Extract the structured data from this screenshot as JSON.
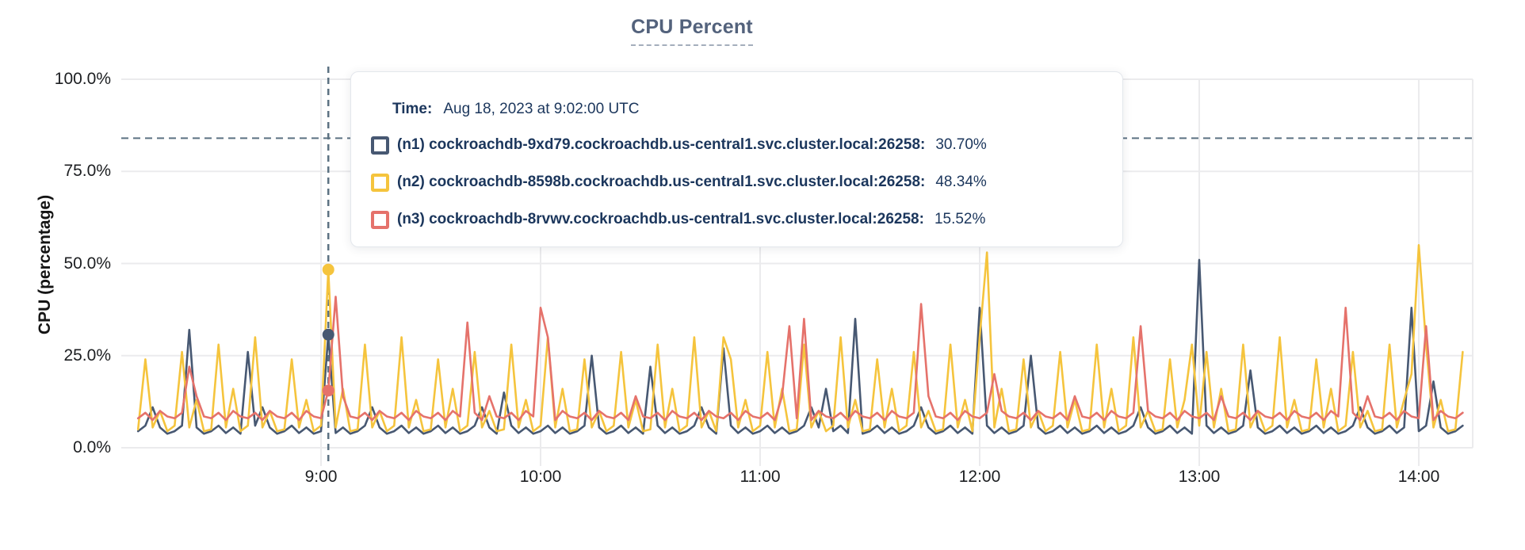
{
  "page": {
    "background": "#ffffff"
  },
  "chart": {
    "title": "CPU Percent",
    "y_axis_title": "CPU (percentage)"
  },
  "tooltip": {
    "time_label": "Time:",
    "time_value": "Aug 18, 2023 at 9:02:00 UTC",
    "rows": [
      {
        "label": "(n1) cockroachdb-9xd79.cockroachdb.us-central1.svc.cluster.local:26258:",
        "value": "30.70%",
        "color": "#475872"
      },
      {
        "label": "(n2) cockroachdb-8598b.cockroachdb.us-central1.svc.cluster.local:26258:",
        "value": "48.34%",
        "color": "#f5c43d"
      },
      {
        "label": "(n3) cockroachdb-8rvwv.cockroachdb.us-central1.svc.cluster.local:26258:",
        "value": "15.52%",
        "color": "#e5726b"
      }
    ]
  },
  "chart_data": {
    "type": "line",
    "title": "CPU Percent",
    "xlabel": "",
    "ylabel": "CPU (percentage)",
    "ylim": [
      0,
      100
    ],
    "grid": true,
    "legend_position": "tooltip",
    "y_ticks": [
      {
        "value": 100,
        "label": "100.0%"
      },
      {
        "value": 75,
        "label": "75.0%"
      },
      {
        "value": 50,
        "label": "50.0%"
      },
      {
        "value": 25,
        "label": "25.0%"
      },
      {
        "value": 0,
        "label": "0.0%"
      }
    ],
    "x_ticks": [
      {
        "minute": 540,
        "label": "9:00"
      },
      {
        "minute": 600,
        "label": "10:00"
      },
      {
        "minute": 660,
        "label": "11:00"
      },
      {
        "minute": 720,
        "label": "12:00"
      },
      {
        "minute": 780,
        "label": "13:00"
      },
      {
        "minute": 840,
        "label": "14:00"
      }
    ],
    "x_range_minutes": [
      485,
      855
    ],
    "guideline_dashed_percent": 84,
    "hover": {
      "minute": 542,
      "time": "Aug 18, 2023 at 9:02:00 UTC",
      "points": [
        {
          "series": "n2",
          "value": 48.34
        },
        {
          "series": "n1",
          "value": 30.7
        },
        {
          "series": "n3",
          "value": 15.52
        }
      ]
    },
    "sample_start_minute": 490,
    "sample_step_minutes": 2,
    "series": [
      {
        "id": "n1",
        "name": "cockroachdb-9xd79.cockroachdb.us-central1.svc.cluster.local:26258",
        "color": "#475872",
        "values": [
          4.5,
          6,
          11,
          5.5,
          3.8,
          4.5,
          6,
          32,
          5.5,
          3.8,
          4.5,
          6,
          4,
          5.5,
          3.8,
          26,
          6,
          11,
          5.5,
          3.8,
          4.5,
          6,
          4,
          5.5,
          3.8,
          4.5,
          30.7,
          4,
          5.5,
          3.8,
          4.5,
          6,
          11,
          5.5,
          3.8,
          4.5,
          6,
          4,
          5.5,
          3.8,
          4.5,
          6,
          4,
          5.5,
          3.8,
          4.5,
          6,
          11,
          5.5,
          3.8,
          15,
          6,
          4,
          5.5,
          3.8,
          4.5,
          6,
          4,
          5.5,
          3.8,
          4.5,
          6,
          25,
          5.5,
          3.8,
          4.5,
          6,
          4,
          5.5,
          3.8,
          22,
          6,
          4,
          5.5,
          3.8,
          4.5,
          6,
          11,
          5.5,
          3.8,
          27,
          6,
          4,
          5.5,
          3.8,
          4.5,
          6,
          4,
          5.5,
          3.8,
          4.5,
          6,
          11,
          5.5,
          16,
          4.5,
          6,
          4,
          35,
          3.8,
          4.5,
          6,
          4,
          5.5,
          3.8,
          4.5,
          6,
          11,
          5.5,
          3.8,
          4.5,
          6,
          4,
          5.5,
          3.8,
          38,
          6,
          4,
          5.5,
          3.8,
          4.5,
          6,
          25,
          5.5,
          3.8,
          4.5,
          6,
          4,
          5.5,
          3.8,
          4.5,
          6,
          4,
          5.5,
          3.8,
          4.5,
          6,
          11,
          5.5,
          3.8,
          4.5,
          6,
          4,
          5.5,
          3.8,
          51,
          6,
          4,
          5.5,
          3.8,
          4.5,
          6,
          21,
          5.5,
          3.8,
          4.5,
          6,
          4,
          5.5,
          3.8,
          4.5,
          6,
          4,
          5.5,
          3.8,
          4.5,
          6,
          11,
          5.5,
          3.8,
          4.5,
          6,
          4,
          5.5,
          38,
          4.5,
          6,
          18,
          5.5,
          3.8,
          4.5,
          6
        ]
      },
      {
        "id": "n2",
        "name": "cockroachdb-8598b.cockroachdb.us-central1.svc.cluster.local:26258",
        "color": "#f5c43d",
        "values": [
          5,
          24,
          5.5,
          10,
          4.5,
          6,
          26,
          5.5,
          13,
          4.5,
          5,
          28,
          5.5,
          16,
          4.5,
          6,
          30,
          5.5,
          10,
          4.5,
          5,
          24,
          5.5,
          13,
          4.5,
          6,
          48.3,
          5.5,
          16,
          4.5,
          5,
          28,
          5.5,
          10,
          4.5,
          6,
          30,
          5.5,
          13,
          4.5,
          5,
          24,
          5.5,
          16,
          4.5,
          6,
          26,
          5.5,
          10,
          4.5,
          5,
          28,
          5.5,
          13,
          4.5,
          6,
          30,
          5.5,
          16,
          4.5,
          5,
          24,
          5.5,
          10,
          4.5,
          6,
          26,
          5.5,
          13,
          4.5,
          5,
          28,
          5.5,
          16,
          4.5,
          6,
          30,
          5.5,
          10,
          4.5,
          30,
          24,
          5.5,
          13,
          4.5,
          6,
          26,
          5.5,
          16,
          4.5,
          5,
          28,
          5.5,
          10,
          4.5,
          6,
          30,
          5.5,
          13,
          4.5,
          5,
          24,
          5.5,
          16,
          4.5,
          6,
          26,
          5.5,
          10,
          4.5,
          5,
          28,
          5.5,
          13,
          4.5,
          30,
          53,
          5.5,
          16,
          4.5,
          5,
          24,
          5.5,
          10,
          4.5,
          6,
          26,
          5.5,
          13,
          4.5,
          5,
          28,
          5.5,
          16,
          4.5,
          6,
          30,
          5.5,
          10,
          4.5,
          5,
          24,
          5.5,
          13,
          28,
          6,
          26,
          5.5,
          16,
          4.5,
          5,
          28,
          5.5,
          10,
          4.5,
          6,
          30,
          5.5,
          13,
          4.5,
          5,
          24,
          5.5,
          16,
          4.5,
          6,
          26,
          5.5,
          10,
          4.5,
          5,
          28,
          5.5,
          13,
          20,
          55,
          28,
          5.5,
          13,
          4.5,
          5,
          26
        ]
      },
      {
        "id": "n3",
        "name": "cockroachdb-8rvwv.cockroachdb.us-central1.svc.cluster.local:26258",
        "color": "#e5726b",
        "values": [
          8,
          9.5,
          7.5,
          10,
          8.5,
          8,
          9.5,
          22,
          14,
          8.5,
          8,
          9.5,
          7.5,
          10,
          8.5,
          8,
          9.5,
          7.5,
          10,
          8.5,
          8,
          9.5,
          7.5,
          10,
          8.5,
          8,
          15.5,
          41,
          14,
          8.5,
          8,
          9.5,
          7.5,
          10,
          8.5,
          8,
          9.5,
          7.5,
          10,
          8.5,
          8,
          9.5,
          7.5,
          10,
          8.5,
          34,
          9.5,
          7.5,
          14,
          8.5,
          8,
          9.5,
          7.5,
          10,
          8.5,
          38,
          30,
          7.5,
          10,
          8.5,
          8,
          9.5,
          7.5,
          10,
          8.5,
          8,
          9.5,
          7.5,
          14,
          8.5,
          8,
          9.5,
          7.5,
          10,
          8.5,
          8,
          9.5,
          7.5,
          10,
          8.5,
          8,
          9.5,
          7.5,
          10,
          8.5,
          8,
          9.5,
          7.5,
          14,
          33,
          8,
          35,
          7.5,
          10,
          8.5,
          8,
          9.5,
          7.5,
          10,
          8.5,
          8,
          9.5,
          7.5,
          10,
          8.5,
          8,
          9.5,
          39,
          14,
          8.5,
          8,
          9.5,
          7.5,
          10,
          8.5,
          8,
          9.5,
          20,
          10,
          8.5,
          8,
          9.5,
          7.5,
          10,
          8.5,
          8,
          9.5,
          7.5,
          14,
          8.5,
          8,
          9.5,
          7.5,
          10,
          8.5,
          8,
          9.5,
          33,
          10,
          8.5,
          8,
          9.5,
          7.5,
          10,
          8.5,
          8,
          9.5,
          7.5,
          14,
          8.5,
          8,
          9.5,
          7.5,
          10,
          8.5,
          8,
          9.5,
          7.5,
          10,
          8.5,
          8,
          9.5,
          7.5,
          10,
          8.5,
          38,
          9.5,
          7.5,
          14,
          8.5,
          8,
          9.5,
          7.5,
          10,
          8.5,
          8,
          33,
          7.5,
          10,
          8.5,
          8,
          9.5
        ]
      }
    ],
    "colors": {
      "dashed_guides": "#5c7282",
      "gridline": "#ebebed"
    }
  }
}
